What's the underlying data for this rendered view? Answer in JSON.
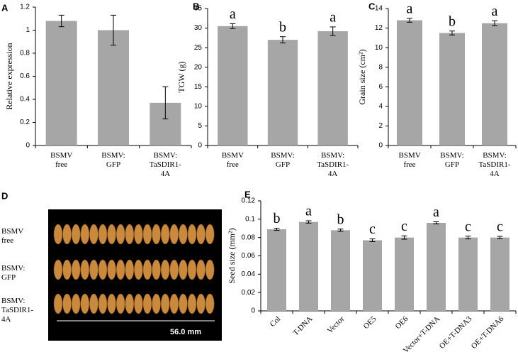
{
  "chart_data": [
    {
      "type": "bar",
      "panel": "A",
      "ylabel": "Relative  expression",
      "categories": [
        "BSMV free",
        "BSMV: GFP",
        "BSMV: TaSDIR1-4A"
      ],
      "values": [
        1.08,
        1.0,
        0.37
      ],
      "errors": [
        0.05,
        0.13,
        0.14
      ],
      "color": "#a6a6a6",
      "ylim": [
        0,
        1.2
      ],
      "yticks": [
        0,
        0.2,
        0.4,
        0.6,
        0.8,
        1,
        1.2
      ]
    },
    {
      "type": "bar",
      "panel": "B",
      "ylabel": "TGW (g)",
      "categories": [
        "BSMV free",
        "BSMV: GFP",
        "BSMV: TaSDIR1-4A"
      ],
      "values": [
        30.5,
        27,
        29.2
      ],
      "errors": [
        0.6,
        0.8,
        1.1
      ],
      "annotations": [
        "a",
        "b",
        "a"
      ],
      "color": "#a6a6a6",
      "ylim": [
        0,
        35
      ],
      "yticks": [
        0,
        5,
        10,
        15,
        20,
        25,
        30,
        35
      ]
    },
    {
      "type": "bar",
      "panel": "C",
      "ylabel": "Grain size (cm²)",
      "categories": [
        "BSMV free",
        "BSMV: GFP",
        "BSMV: TaSDIR1-4A"
      ],
      "values": [
        12.8,
        11.5,
        12.5
      ],
      "errors": [
        0.2,
        0.2,
        0.25
      ],
      "annotations": [
        "a",
        "b",
        "a"
      ],
      "color": "#a6a6a6",
      "ylim": [
        0,
        14
      ],
      "yticks": [
        0,
        2,
        4,
        6,
        8,
        10,
        12,
        14
      ]
    },
    {
      "type": "bar",
      "panel": "E",
      "ylabel": "Seed size (mm²)",
      "categories": [
        "Col",
        "T-DNA",
        "Vector",
        "OE5",
        "OE6",
        "Vector+T-DNA",
        "OE+T-DNA3",
        "OE+T-DNA6"
      ],
      "values": [
        0.089,
        0.097,
        0.088,
        0.077,
        0.08,
        0.096,
        0.08,
        0.08
      ],
      "errors": [
        0.0012,
        0.0013,
        0.0012,
        0.0015,
        0.0018,
        0.0012,
        0.0015,
        0.0013
      ],
      "annotations": [
        "b",
        "a",
        "b",
        "c",
        "c",
        "a",
        "c",
        "c"
      ],
      "color": "#a6a6a6",
      "ylim": [
        0,
        0.12
      ],
      "yticks": [
        0,
        0.02,
        0.04,
        0.06,
        0.08,
        0.1,
        0.12
      ],
      "rotate_labels": true
    }
  ],
  "photo": {
    "panel": "D",
    "rows": [
      "BSMV free",
      "BSMV: GFP",
      "BSMV: TaSDIR1-4A"
    ],
    "scale": "56.0 mm"
  }
}
